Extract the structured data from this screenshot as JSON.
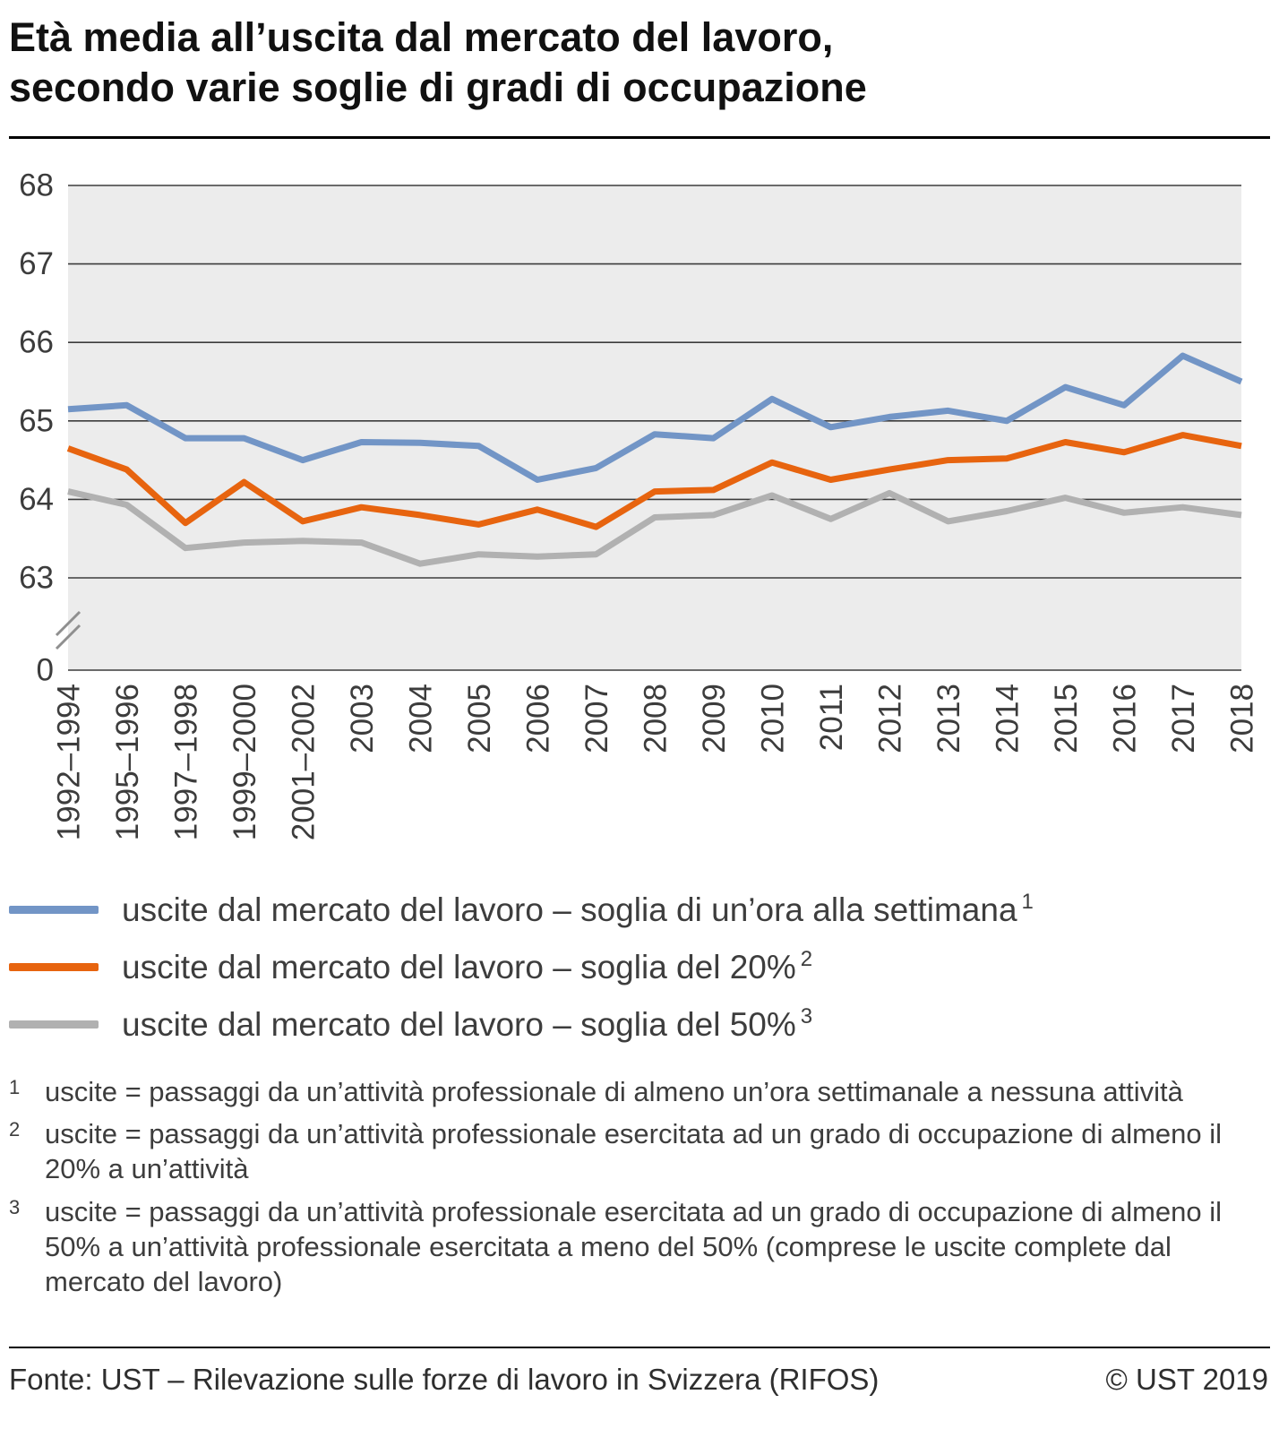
{
  "title": {
    "line1": "Età media all’uscita dal mercato del lavoro,",
    "line2": "secondo varie soglie di gradi di occupazione"
  },
  "chart_data": {
    "type": "line",
    "title": "Età media all’uscita dal mercato del lavoro, secondo varie soglie di gradi di occupazione",
    "categories": [
      "1992–1994",
      "1995–1996",
      "1997–1998",
      "1999–2000",
      "2001–2002",
      "2003",
      "2004",
      "2005",
      "2006",
      "2007",
      "2008",
      "2009",
      "2010",
      "2011",
      "2012",
      "2013",
      "2014",
      "2015",
      "2016",
      "2017",
      "2018"
    ],
    "series": [
      {
        "name": "uscite dal mercato del lavoro – soglia di un’ora alla settimana",
        "footnote_marker": "1",
        "color": "#7295c6",
        "values": [
          65.15,
          65.2,
          64.78,
          64.78,
          64.5,
          64.73,
          64.72,
          64.68,
          64.25,
          64.4,
          64.83,
          64.78,
          65.28,
          64.92,
          65.05,
          65.13,
          65.0,
          65.43,
          65.2,
          65.83,
          65.5
        ]
      },
      {
        "name": "uscite dal mercato del lavoro – soglia del 20%",
        "footnote_marker": "2",
        "color": "#e7640f",
        "values": [
          64.65,
          64.38,
          63.7,
          64.22,
          63.72,
          63.9,
          63.8,
          63.68,
          63.87,
          63.65,
          64.1,
          64.12,
          64.47,
          64.25,
          64.38,
          64.5,
          64.52,
          64.73,
          64.6,
          64.82,
          64.68
        ]
      },
      {
        "name": "uscite dal mercato del lavoro – soglia del 50%",
        "footnote_marker": "3",
        "color": "#b1b1b1",
        "values": [
          64.1,
          63.93,
          63.38,
          63.45,
          63.47,
          63.45,
          63.18,
          63.3,
          63.27,
          63.3,
          63.77,
          63.8,
          64.05,
          63.75,
          64.08,
          63.72,
          63.85,
          64.02,
          63.83,
          63.9,
          63.8
        ]
      }
    ],
    "xlabel": "",
    "ylabel": "",
    "yticks": [
      68,
      67,
      66,
      65,
      64,
      63,
      0
    ],
    "ylim_display": [
      63,
      68
    ],
    "axis_break": true,
    "grid": "horizontal",
    "grid_color": "#3c3c3c",
    "plot_bg": "#ececec",
    "legend_position": "bottom"
  },
  "footnotes": [
    {
      "marker": "1",
      "text": "uscite = passaggi da un’attività professionale di almeno un’ora settimanale a nessuna attività"
    },
    {
      "marker": "2",
      "text": "uscite = passaggi da un’attività professionale esercitata ad un grado di occupazione di almeno il 20% a un’attività"
    },
    {
      "marker": "3",
      "text": "uscite = passaggi da un’attività professionale esercitata ad un grado di occupazione di almeno il 50% a un’attività professionale esercitata a meno del 50% (comprese le uscite complete dal mercato del lavoro)"
    }
  ],
  "footer": {
    "source": "Fonte: UST – Rilevazione sulle forze di lavoro in Svizzera (RIFOS)",
    "copyright": "© UST 2019"
  }
}
